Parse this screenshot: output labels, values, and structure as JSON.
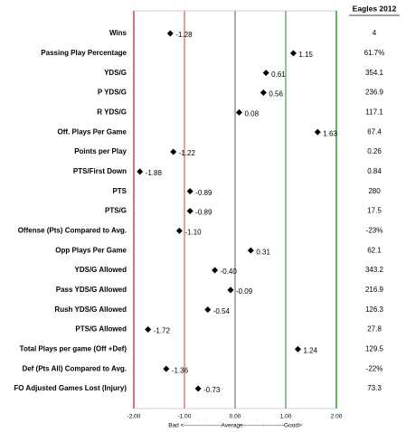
{
  "chart_data": {
    "type": "dot",
    "categories": [
      "Wins",
      "Passing Play Percentage",
      "YDS/G",
      "P YDS/G",
      "R YDS/G",
      "Off. Plays Per Game",
      "Points per Play",
      "PTS/First Down",
      "PTS",
      "PTS/G",
      "Offense (Pts) Compared to Avg.",
      "Opp Plays Per Game",
      "YDS/G Allowed",
      "Pass YDS/G Allowed",
      "Rush YDS/G Allowed",
      "PTS/G Allowed",
      "Total Plays per game (Off +Def)",
      "Def (Pts All) Compared to Avg.",
      "FO Adjusted Games Lost (Injury)"
    ],
    "values": [
      -1.28,
      1.15,
      0.61,
      0.56,
      0.08,
      1.63,
      -1.22,
      -1.88,
      -0.89,
      -0.89,
      -1.1,
      0.31,
      -0.4,
      -0.09,
      -0.54,
      -1.72,
      1.24,
      -1.36,
      -0.73
    ],
    "value_labels": [
      "-1.28",
      "1.15",
      "0.61",
      "0.56",
      "0.08",
      "1.63",
      "-1.22",
      "-1.88",
      "-0.89",
      "-0.89",
      "-1.10",
      "0.31",
      "-0.40",
      "-0.09",
      "-0.54",
      "-1.72",
      "1.24",
      "-1.36",
      "-0.73"
    ],
    "color": "#000000",
    "xlim": [
      -2,
      2
    ],
    "xticks": [
      {
        "value": -2,
        "label": "-2.00"
      },
      {
        "value": -1,
        "label": "-1.00"
      },
      {
        "value": 0,
        "label": "0.00"
      },
      {
        "value": 1,
        "label": "1.00"
      },
      {
        "value": 2,
        "label": "2.00"
      }
    ],
    "xtick_colors": [
      "#e07070",
      "#e8a0a0",
      "#b0b0b0",
      "#88c888",
      "#5cb85c"
    ],
    "x_label": "Bad <-------------------Average---------------------Good>",
    "table": {
      "header": "Eagles 2012",
      "values": [
        "4",
        "61.7%",
        "354.1",
        "236.9",
        "117.1",
        "67.4",
        "0.26",
        "0.84",
        "280",
        "17.5",
        "-23%",
        "62.1",
        "343.2",
        "216.9",
        "126.3",
        "27.8",
        "129.5",
        "-22%",
        "73.3"
      ]
    }
  }
}
